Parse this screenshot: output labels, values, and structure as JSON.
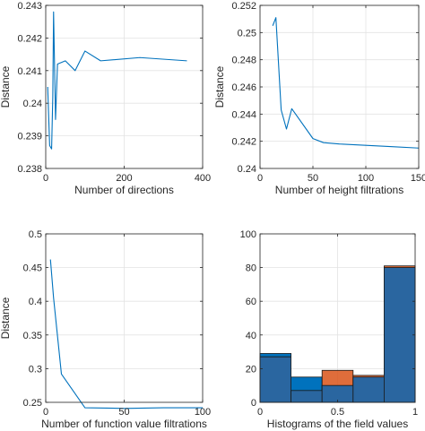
{
  "chart_data": [
    {
      "type": "line",
      "xlabel": "Number of directions",
      "ylabel": "Distance",
      "xlim": [
        0,
        400
      ],
      "ylim": [
        0.238,
        0.243
      ],
      "xticks": [
        0,
        200,
        400
      ],
      "yticks": [
        0.238,
        0.239,
        0.24,
        0.241,
        0.242,
        0.243
      ],
      "grid": true,
      "color": "#0072BD",
      "x": [
        5,
        10,
        15,
        18,
        20,
        25,
        30,
        50,
        75,
        100,
        140,
        240,
        360
      ],
      "y": [
        0.2405,
        0.2387,
        0.2386,
        0.2402,
        0.2428,
        0.2395,
        0.2412,
        0.2413,
        0.241,
        0.2416,
        0.2413,
        0.2414,
        0.2413
      ]
    },
    {
      "type": "line",
      "xlabel": "Number of height filtrations",
      "ylabel": "Distance",
      "xlim": [
        0,
        150
      ],
      "ylim": [
        0.24,
        0.252
      ],
      "xticks": [
        0,
        50,
        100,
        150
      ],
      "yticks": [
        0.24,
        0.242,
        0.244,
        0.246,
        0.248,
        0.25,
        0.252
      ],
      "grid": true,
      "color": "#0072BD",
      "x": [
        12,
        15,
        20,
        25,
        30,
        50,
        60,
        75,
        100,
        125,
        150
      ],
      "y": [
        0.2505,
        0.2511,
        0.2443,
        0.2429,
        0.2444,
        0.2422,
        0.2419,
        0.2418,
        0.2417,
        0.2416,
        0.2415
      ]
    },
    {
      "type": "line",
      "xlabel": "Number of function value filtrations",
      "ylabel": "Distance",
      "xlim": [
        0,
        100
      ],
      "ylim": [
        0.25,
        0.5
      ],
      "xticks": [
        0,
        50,
        100
      ],
      "yticks": [
        0.25,
        0.3,
        0.35,
        0.4,
        0.45,
        0.5
      ],
      "grid": true,
      "color": "#0072BD",
      "x": [
        3,
        5,
        10,
        25,
        50,
        75,
        100
      ],
      "y": [
        0.462,
        0.405,
        0.292,
        0.242,
        0.241,
        0.242,
        0.242
      ]
    },
    {
      "type": "bar",
      "xlabel": "Histograms of the field values",
      "ylabel": "",
      "xlim": [
        0,
        1
      ],
      "ylim": [
        0,
        100
      ],
      "xticks": [
        0,
        0.5,
        1
      ],
      "xtick_labels": [
        "0",
        "0.5",
        "1"
      ],
      "yticks": [
        0,
        20,
        40,
        60,
        80,
        100
      ],
      "grid": true,
      "bin_edges": [
        0,
        0.2,
        0.4,
        0.6,
        0.8,
        1
      ],
      "series": [
        {
          "color": "#0072BD",
          "values": [
            29,
            15,
            10,
            15,
            80
          ]
        },
        {
          "color": "#D95319",
          "values": [
            27,
            7,
            19,
            16,
            81
          ]
        }
      ]
    }
  ]
}
